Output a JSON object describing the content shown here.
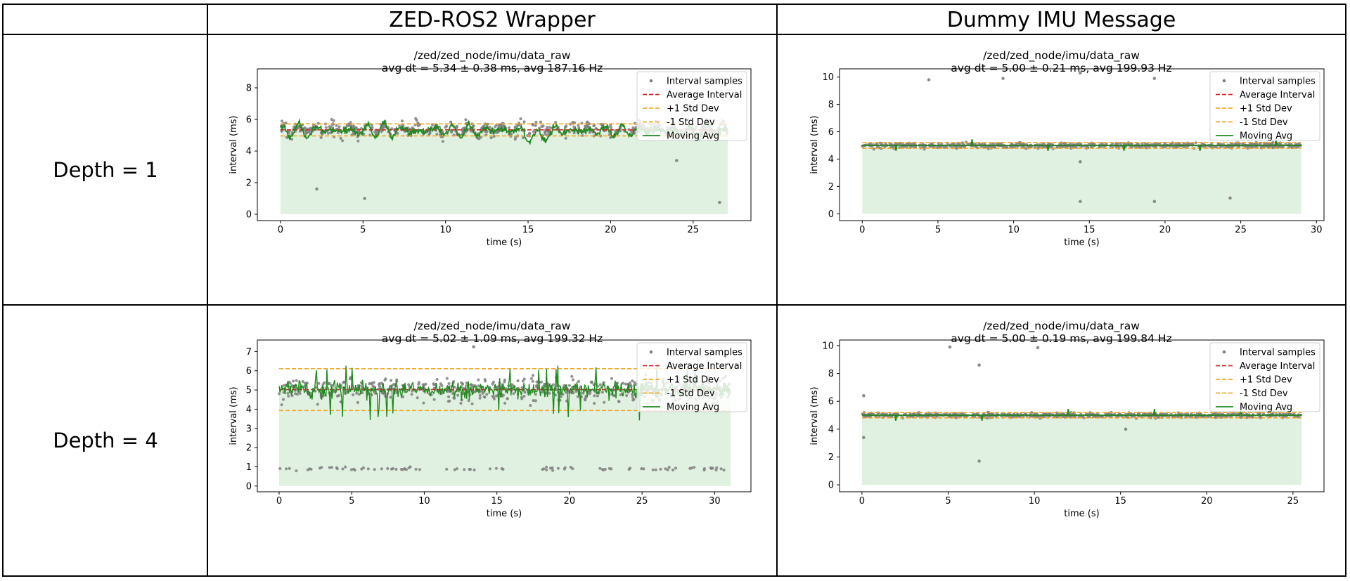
{
  "table": {
    "col_headers": [
      "ZED-ROS2 Wrapper",
      "Dummy IMU Message"
    ],
    "row_headers": [
      "Depth = 1",
      "Depth = 4"
    ]
  },
  "colors": {
    "samples": "#808080",
    "average": "#d62728",
    "std": "#f5a623",
    "moving_avg": "#1f8a1f",
    "fill": "#dff0df"
  },
  "legend_labels": [
    "Interval samples",
    "Average Interval",
    "+1 Std Dev",
    "-1 Std Dev",
    "Moving Avg"
  ],
  "chart_data": [
    {
      "type": "scatter",
      "id": "zed_d1",
      "title": "/zed/zed_node/imu/data_raw",
      "subtitle": "avg dt = 5.34 ± 0.38 ms, avg 187.16 Hz",
      "xlabel": "time (s)",
      "ylabel": "interval (ms)",
      "xlim": [
        -1.4,
        28.5
      ],
      "ylim": [
        -0.4,
        9.2
      ],
      "xticks": [
        0,
        5,
        10,
        15,
        20,
        25
      ],
      "yticks": [
        0,
        2,
        4,
        6,
        8
      ],
      "duration": 27.1,
      "mean": 5.34,
      "std": 0.38,
      "legend": "upper right",
      "outliers": [
        [
          2.2,
          1.6
        ],
        [
          5.1,
          1.0
        ],
        [
          24.0,
          3.4
        ],
        [
          26.6,
          0.75
        ]
      ]
    },
    {
      "type": "scatter",
      "id": "dummy_d1",
      "title": "/zed/zed_node/imu/data_raw",
      "subtitle": "avg dt = 5.00 ± 0.21 ms, avg 199.93 Hz",
      "xlabel": "time (s)",
      "ylabel": "interval (ms)",
      "xlim": [
        -1.5,
        30.5
      ],
      "ylim": [
        -0.5,
        10.6
      ],
      "xticks": [
        0,
        5,
        10,
        15,
        20,
        25,
        30
      ],
      "yticks": [
        0,
        2,
        4,
        6,
        8,
        10
      ],
      "duration": 29.0,
      "mean": 5.0,
      "std": 0.21,
      "legend": "upper right",
      "outliers": [
        [
          4.4,
          9.8
        ],
        [
          9.3,
          9.9
        ],
        [
          14.4,
          10.3
        ],
        [
          19.3,
          9.9
        ],
        [
          14.4,
          0.9
        ],
        [
          19.3,
          0.9
        ],
        [
          24.3,
          1.15
        ],
        [
          14.4,
          3.8
        ]
      ]
    },
    {
      "type": "scatter",
      "id": "zed_d4",
      "title": "/zed/zed_node/imu/data_raw",
      "subtitle": "avg dt = 5.02 ± 1.09 ms, avg 199.32 Hz",
      "xlabel": "time (s)",
      "ylabel": "interval (ms)",
      "xlim": [
        -1.5,
        32.5
      ],
      "ylim": [
        -0.3,
        7.6
      ],
      "xticks": [
        0,
        5,
        10,
        15,
        20,
        25,
        30
      ],
      "yticks": [
        0,
        1,
        2,
        3,
        4,
        5,
        6,
        7
      ],
      "duration": 31.1,
      "mean": 5.02,
      "std": 1.09,
      "legend": "upper right",
      "low_band": 0.9,
      "outliers": [
        [
          13.4,
          7.25
        ]
      ]
    },
    {
      "type": "scatter",
      "id": "dummy_d4",
      "title": "/zed/zed_node/imu/data_raw",
      "subtitle": "avg dt = 5.00 ± 0.19 ms, avg 199.84 Hz",
      "xlabel": "time (s)",
      "ylabel": "interval (ms)",
      "xlim": [
        -1.3,
        26.8
      ],
      "ylim": [
        -0.5,
        10.4
      ],
      "xticks": [
        0,
        5,
        10,
        15,
        20,
        25
      ],
      "yticks": [
        0,
        2,
        4,
        6,
        8,
        10
      ],
      "duration": 25.5,
      "mean": 5.0,
      "std": 0.19,
      "legend": "upper right",
      "outliers": [
        [
          5.1,
          9.9
        ],
        [
          10.2,
          9.85
        ],
        [
          6.8,
          8.6
        ],
        [
          6.8,
          1.7
        ],
        [
          0.1,
          6.4
        ],
        [
          0.1,
          3.4
        ],
        [
          15.3,
          4.0
        ]
      ]
    }
  ]
}
